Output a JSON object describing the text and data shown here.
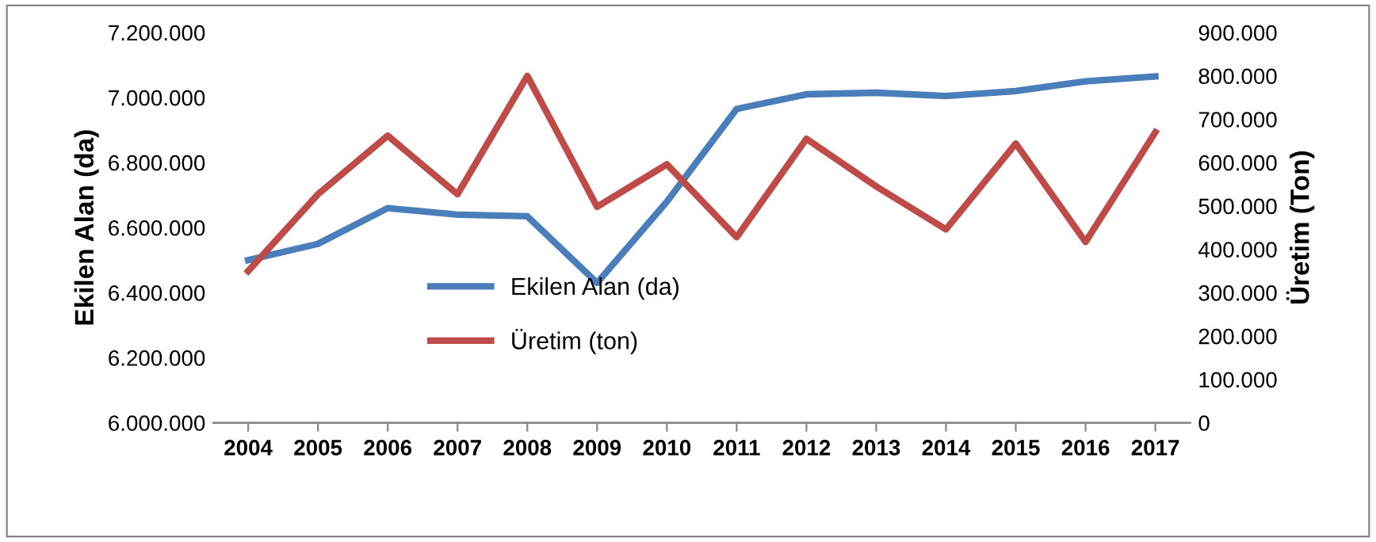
{
  "chart_data": {
    "type": "line",
    "ylabel": "Ekilen Alan (da)",
    "y2label": "Üretim (Ton)",
    "categories": [
      "2004",
      "2005",
      "2006",
      "2007",
      "2008",
      "2009",
      "2010",
      "2011",
      "2012",
      "2013",
      "2014",
      "2015",
      "2016",
      "2017"
    ],
    "series": [
      {
        "name": "Ekilen Alan (da)",
        "color": "#4a7ebb",
        "values": [
          6500000,
          6550000,
          6660000,
          6640000,
          6635000,
          6430000,
          6680000,
          6965000,
          7010000,
          7015000,
          7005000,
          7020000,
          7050000,
          7065000
        ]
      },
      {
        "name": "Üretim (ton)",
        "color": "#be4b48",
        "axis": "y2",
        "values": [
          350000,
          527000,
          662000,
          527000,
          800000,
          498000,
          596000,
          428000,
          655000,
          545000,
          446000,
          644000,
          417000,
          670000
        ]
      }
    ],
    "ylim": [
      6000000,
      7200000
    ],
    "yticks": [
      {
        "value": 6000000,
        "label": "6.000.000"
      },
      {
        "value": 6200000,
        "label": "6.200.000"
      },
      {
        "value": 6400000,
        "label": "6.400.000"
      },
      {
        "value": 6600000,
        "label": "6.600.000"
      },
      {
        "value": 6800000,
        "label": "6.800.000"
      },
      {
        "value": 7000000,
        "label": "7.000.000"
      },
      {
        "value": 7200000,
        "label": "7.200.000"
      }
    ],
    "y2lim": [
      0,
      900000
    ],
    "y2ticks": [
      0,
      {
        "value": 100000,
        "label": "100.000"
      },
      {
        "value": 200000,
        "label": "200.000"
      },
      {
        "value": 300000,
        "label": "300.000"
      },
      {
        "value": 400000,
        "label": "400.000"
      },
      {
        "value": 500000,
        "label": "500.000"
      },
      {
        "value": 600000,
        "label": "600.000"
      },
      {
        "value": 700000,
        "label": "700.000"
      },
      {
        "value": 800000,
        "label": "800.000"
      },
      {
        "value": 900000,
        "label": "900.000"
      }
    ],
    "legend": "bottom",
    "grid": false,
    "marker": "none",
    "line_style": "solid"
  }
}
